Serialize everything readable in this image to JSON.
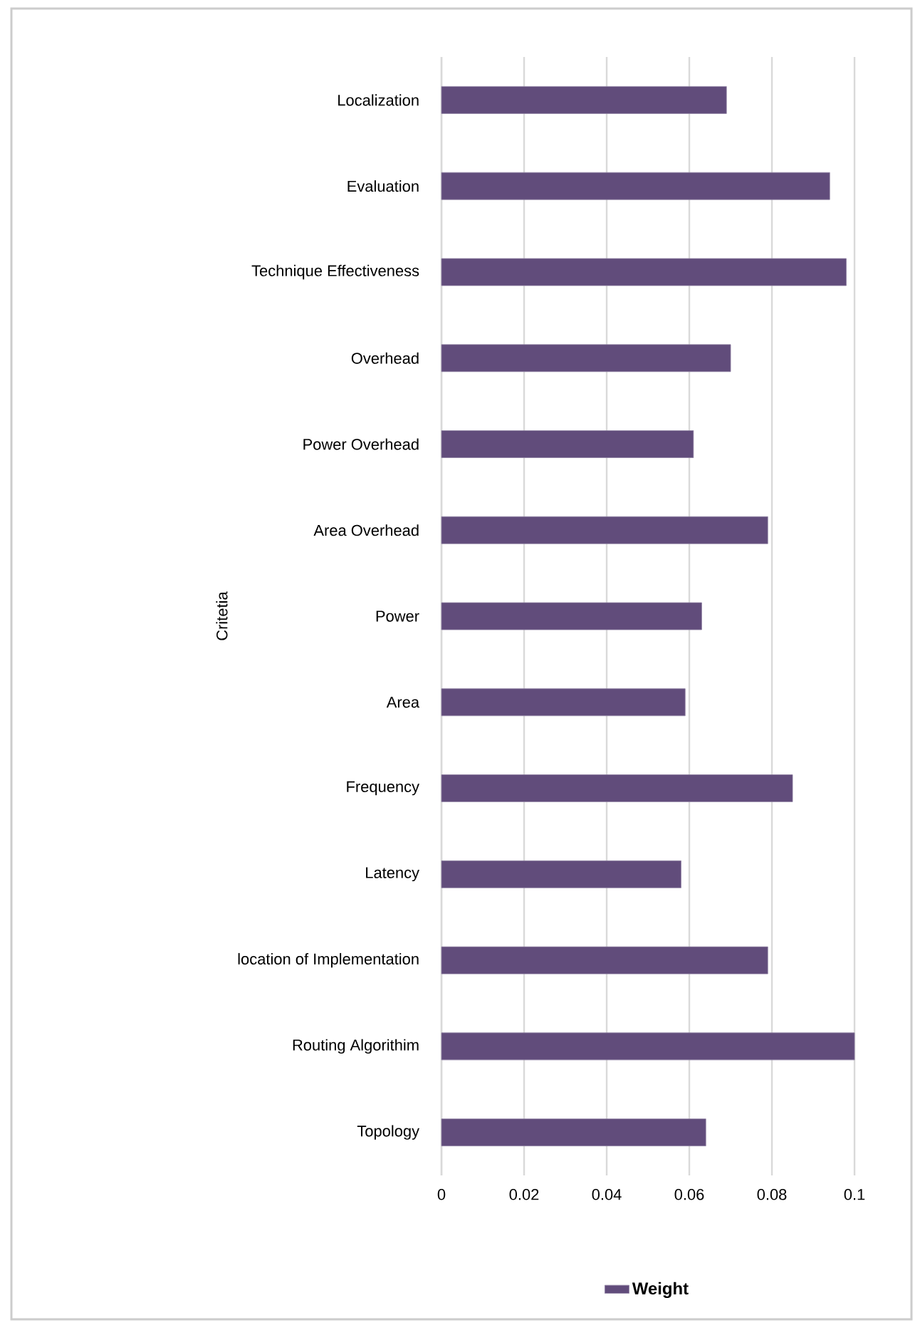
{
  "chart_data": {
    "type": "bar",
    "orientation": "horizontal",
    "ylabel": "Critetia",
    "categories": [
      "Localization",
      "Evaluation",
      "Technique Effectiveness",
      "Overhead",
      "Power Overhead",
      "Area Overhead",
      "Power",
      "Area",
      "Frequency",
      "Latency",
      "location of Implementation",
      "Routing Algorithim",
      "Topology"
    ],
    "series": [
      {
        "name": "Weight",
        "color": "#614c7b",
        "values": [
          0.069,
          0.094,
          0.098,
          0.07,
          0.061,
          0.079,
          0.063,
          0.059,
          0.085,
          0.058,
          0.079,
          0.1,
          0.064
        ]
      }
    ],
    "xlim": [
      0,
      0.1
    ],
    "xticks": [
      0,
      0.02,
      0.04,
      0.06,
      0.08,
      0.1
    ],
    "grid": "x",
    "legend": "bottom"
  }
}
